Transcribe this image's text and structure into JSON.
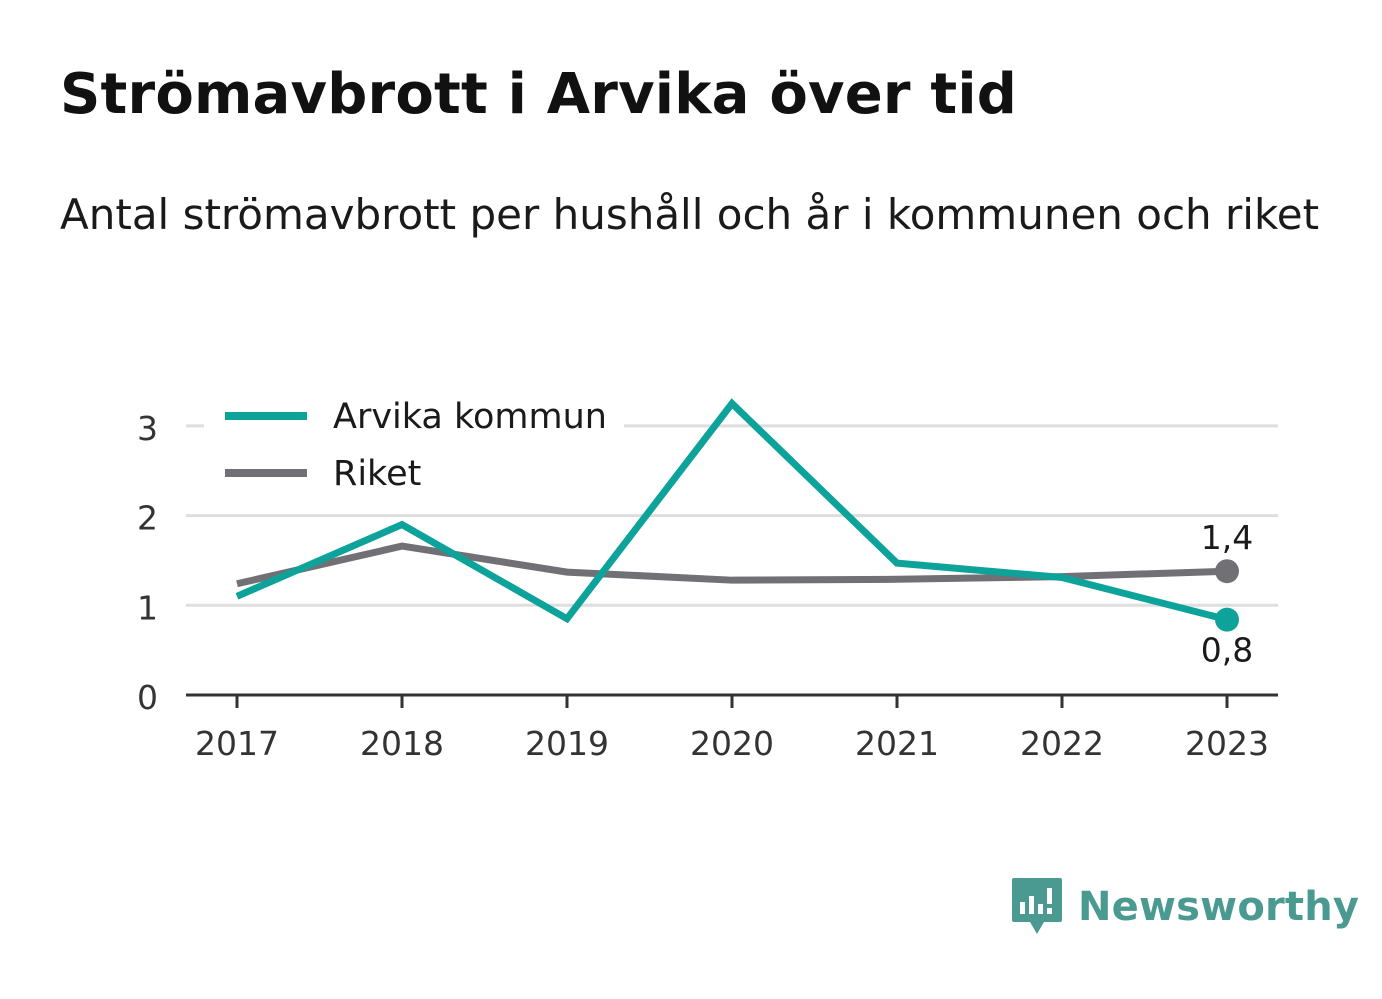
{
  "title": "Strömavbrott i Arvika över tid",
  "subtitle": "Antal strömavbrott per hushåll och år i kommunen och riket",
  "brand": {
    "name": "Newsworthy",
    "icon": "newsworthy-logo-icon",
    "color": "#4a9a92"
  },
  "chart_data": {
    "type": "line",
    "x": [
      "2017",
      "2018",
      "2019",
      "2020",
      "2021",
      "2022",
      "2023"
    ],
    "yticks": [
      "0",
      "1",
      "2",
      "3"
    ],
    "ylim": [
      0,
      3.3
    ],
    "grid": true,
    "legend_position": "top-left",
    "series": [
      {
        "name": "Arvika kommun",
        "color": "#0ea39a",
        "values": [
          1.1,
          1.9,
          0.85,
          3.25,
          1.47,
          1.31,
          0.84
        ],
        "end_label": "0,8",
        "end_label_position": "below"
      },
      {
        "name": "Riket",
        "color": "#717075",
        "values": [
          1.24,
          1.66,
          1.37,
          1.28,
          1.29,
          1.32,
          1.38
        ],
        "end_label": "1,4",
        "end_label_position": "above"
      }
    ]
  }
}
